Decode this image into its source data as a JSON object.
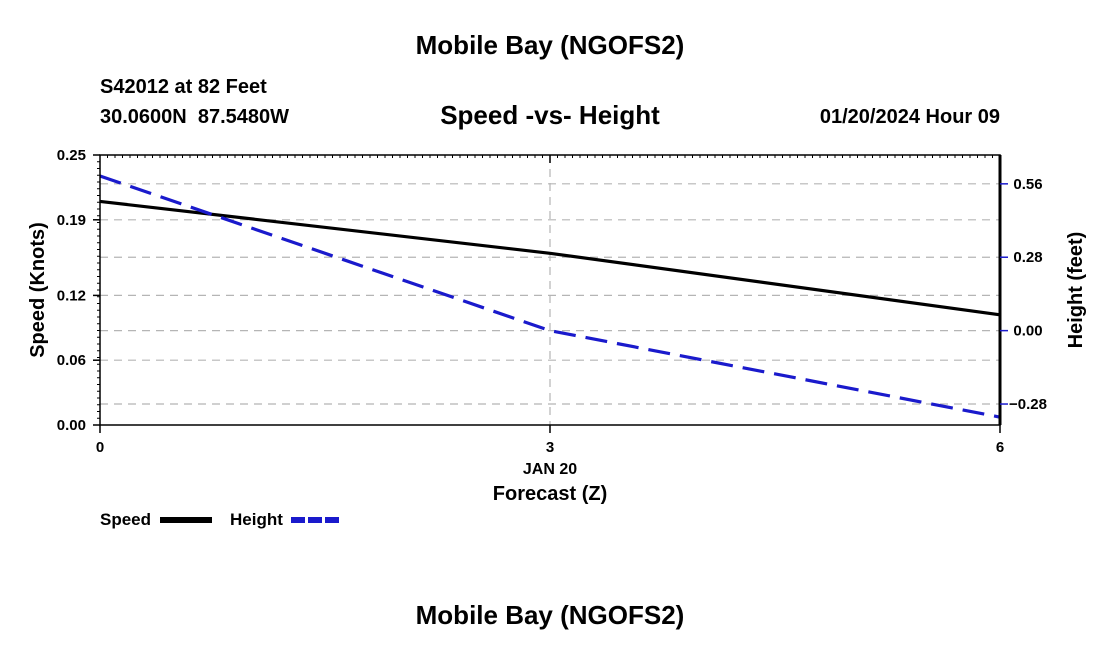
{
  "header": {
    "title": "Mobile Bay (NGOFS2)",
    "station": "S42012 at 82 Feet",
    "coords": "30.0600N  87.5480W",
    "date": "01/20/2024 Hour 09",
    "footer_title": "Mobile Bay (NGOFS2)"
  },
  "chart_data": {
    "type": "line",
    "title": "Speed -vs- Height",
    "xlabel": "Forecast (Z)",
    "x_date_label": "JAN 20",
    "ylabel": "Speed (Knots)",
    "y2label": "Height (feet)",
    "x": [
      0,
      3,
      6
    ],
    "xlim": [
      0,
      6
    ],
    "xticks": [
      "0",
      "3",
      "6"
    ],
    "ylim": [
      0,
      0.25
    ],
    "yticks": [
      0.0,
      0.06,
      0.12,
      0.19,
      0.25
    ],
    "ytick_labels": [
      "0.00",
      "0.06",
      "0.12",
      "0.19",
      "0.25"
    ],
    "y2lim": [
      -0.36,
      0.67
    ],
    "y2ticks": [
      -0.28,
      0.0,
      0.28,
      0.56
    ],
    "y2tick_labels": [
      "−0.28",
      "0.00",
      "0.28",
      "0.56"
    ],
    "grid": true,
    "series": [
      {
        "name": "Speed",
        "axis": "left",
        "color": "#000000",
        "style": "solid",
        "values": [
          0.207,
          0.159,
          0.102
        ]
      },
      {
        "name": "Height",
        "axis": "right",
        "color": "#1a1acc",
        "style": "dashed",
        "values": [
          0.59,
          0.0,
          -0.33
        ]
      }
    ],
    "legend": [
      "Speed",
      "Height"
    ],
    "legend_position": "bottom-left"
  }
}
